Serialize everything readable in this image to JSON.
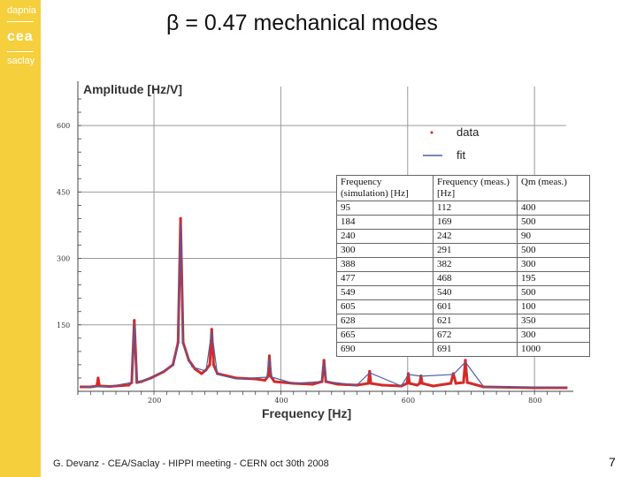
{
  "branding": {
    "lab": "dapnia",
    "org": "cea",
    "site": "saclay",
    "bar_color": "#f5d03c"
  },
  "slide": {
    "title": "β = 0.47 mechanical modes",
    "footer": "G. Devanz - CEA/Saclay - HIPPI meeting - CERN oct 30th 2008",
    "page_number": "7"
  },
  "chart_data": {
    "type": "line",
    "ylabel": "Amplitude [Hz/V]",
    "xlabel": "Frequency [Hz]",
    "xlim": [
      80,
      850
    ],
    "ylim": [
      0,
      660
    ],
    "xticks": [
      200,
      400,
      600,
      800
    ],
    "yticks": [
      150,
      300,
      450,
      600
    ],
    "grid": true,
    "legend": {
      "position": "top-right",
      "entries": [
        {
          "label": "data",
          "color": "#d42a2a"
        },
        {
          "label": "fit",
          "color": "#4a5fa8"
        }
      ]
    },
    "series": [
      {
        "name": "data",
        "color": "#d42a2a",
        "x": [
          85,
          100,
          110,
          112,
          114,
          130,
          160,
          165,
          169,
          173,
          180,
          195,
          215,
          230,
          238,
          242,
          246,
          255,
          265,
          275,
          282,
          288,
          291,
          294,
          300,
          330,
          360,
          375,
          380,
          382,
          384,
          390,
          420,
          450,
          465,
          468,
          471,
          490,
          520,
          538,
          540,
          542,
          560,
          590,
          599,
          601,
          603,
          615,
          619,
          621,
          623,
          640,
          668,
          672,
          676,
          688,
          691,
          694,
          720,
          760,
          800,
          850
        ],
        "y": [
          10,
          10,
          12,
          30,
          12,
          11,
          14,
          20,
          160,
          20,
          22,
          30,
          44,
          60,
          110,
          390,
          110,
          70,
          50,
          40,
          48,
          60,
          140,
          60,
          40,
          30,
          28,
          25,
          34,
          80,
          34,
          22,
          18,
          16,
          22,
          70,
          22,
          16,
          14,
          18,
          45,
          18,
          14,
          12,
          18,
          40,
          18,
          14,
          18,
          35,
          18,
          12,
          18,
          40,
          18,
          20,
          70,
          20,
          10,
          9,
          8,
          8
        ]
      },
      {
        "name": "fit",
        "color": "#4a5fa8",
        "x": [
          85,
          130,
          165,
          169,
          173,
          195,
          230,
          238,
          242,
          246,
          260,
          282,
          291,
          300,
          330,
          378,
          382,
          386,
          420,
          464,
          468,
          472,
          520,
          540,
          590,
          601,
          621,
          672,
          691,
          720,
          850
        ],
        "y": [
          10,
          11,
          20,
          155,
          20,
          30,
          58,
          105,
          380,
          105,
          55,
          46,
          135,
          38,
          28,
          32,
          75,
          32,
          18,
          22,
          66,
          22,
          14,
          42,
          12,
          38,
          34,
          38,
          66,
          10,
          8
        ]
      }
    ]
  },
  "table": {
    "headers": [
      "Frequency (simulation) [Hz]",
      "Frequency (meas.) [Hz]",
      "Qm (meas.)"
    ],
    "rows": [
      [
        "95",
        "112",
        "400"
      ],
      [
        "184",
        "169",
        "500"
      ],
      [
        "240",
        "242",
        "90"
      ],
      [
        "300",
        "291",
        "500"
      ],
      [
        "388",
        "382",
        "300"
      ],
      [
        "477",
        "468",
        "195"
      ],
      [
        "549",
        "540",
        "500"
      ],
      [
        "605",
        "601",
        "100"
      ],
      [
        "628",
        "621",
        "350"
      ],
      [
        "665",
        "672",
        "300"
      ],
      [
        "690",
        "691",
        "1000"
      ]
    ]
  }
}
